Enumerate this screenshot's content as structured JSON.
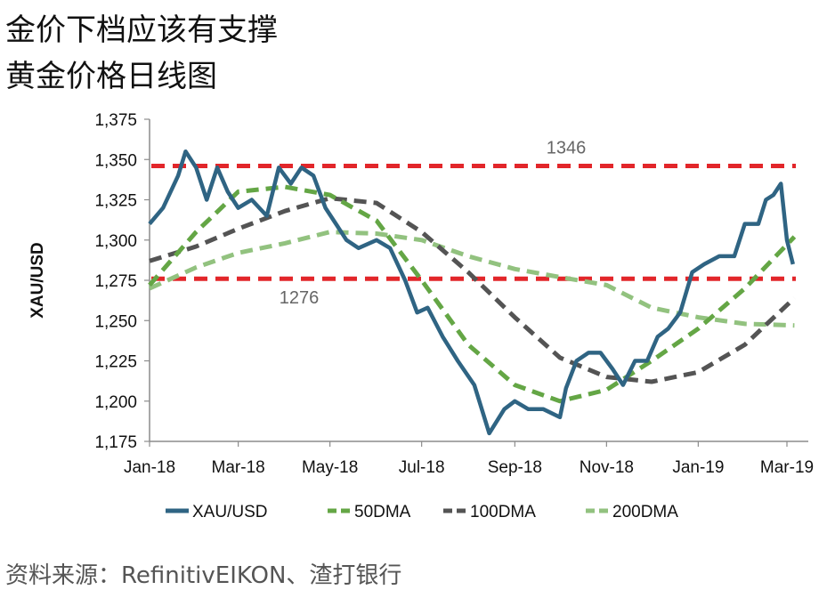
{
  "header": {
    "title": "金价下档应该有支撑",
    "subtitle": "黄金价格日线图"
  },
  "footer": {
    "source": "资料来源：RefinitivEIKON、渣打银行"
  },
  "colors": {
    "price": "#2f6483",
    "dma50": "#64a645",
    "dma100": "#545454",
    "dma200": "#92c27f",
    "level": "#e2262a",
    "axis": "#8c8c8c",
    "level_label": "#666666"
  },
  "chart_data": {
    "type": "line",
    "title": "",
    "xlabel": "",
    "ylabel": "XAU/USD",
    "ylim": [
      1175,
      1375
    ],
    "yticks": [
      "1,175",
      "1,200",
      "1,225",
      "1,250",
      "1,275",
      "1,300",
      "1,325",
      "1,350",
      "1,375"
    ],
    "ytick_values": [
      1175,
      1200,
      1225,
      1250,
      1275,
      1300,
      1325,
      1350,
      1375
    ],
    "xticks": [
      "Jan-18",
      "Mar-18",
      "May-18",
      "Jul-18",
      "Sep-18",
      "Nov-18",
      "Jan-19",
      "Mar-19"
    ],
    "xtick_dates": [
      "2018-01-01",
      "2018-03-01",
      "2018-05-01",
      "2018-07-01",
      "2018-09-01",
      "2018-11-01",
      "2019-01-01",
      "2019-03-01"
    ],
    "grid": false,
    "legend": "bottom",
    "levels": [
      {
        "value": 1346,
        "label": "1346"
      },
      {
        "value": 1276,
        "label": "1276"
      }
    ],
    "series": [
      {
        "name": "XAU/USD",
        "style": "solid",
        "x": [
          "2018-01-01",
          "2018-01-10",
          "2018-01-20",
          "2018-01-25",
          "2018-02-01",
          "2018-02-08",
          "2018-02-15",
          "2018-02-22",
          "2018-03-01",
          "2018-03-10",
          "2018-03-20",
          "2018-03-28",
          "2018-04-05",
          "2018-04-12",
          "2018-04-20",
          "2018-04-28",
          "2018-05-05",
          "2018-05-12",
          "2018-05-20",
          "2018-06-01",
          "2018-06-10",
          "2018-06-20",
          "2018-06-28",
          "2018-07-05",
          "2018-07-15",
          "2018-07-25",
          "2018-08-05",
          "2018-08-15",
          "2018-08-25",
          "2018-09-01",
          "2018-09-10",
          "2018-09-20",
          "2018-10-01",
          "2018-10-05",
          "2018-10-12",
          "2018-10-20",
          "2018-10-28",
          "2018-11-05",
          "2018-11-12",
          "2018-11-20",
          "2018-11-28",
          "2018-12-05",
          "2018-12-12",
          "2018-12-20",
          "2018-12-28",
          "2019-01-05",
          "2019-01-15",
          "2019-01-25",
          "2019-02-01",
          "2019-02-10",
          "2019-02-15",
          "2019-02-20",
          "2019-02-25",
          "2019-03-01",
          "2019-03-05"
        ],
        "y": [
          1310,
          1320,
          1340,
          1355,
          1345,
          1325,
          1345,
          1330,
          1320,
          1325,
          1315,
          1345,
          1335,
          1345,
          1340,
          1320,
          1310,
          1300,
          1295,
          1300,
          1295,
          1275,
          1255,
          1258,
          1240,
          1225,
          1210,
          1180,
          1195,
          1200,
          1195,
          1195,
          1190,
          1208,
          1225,
          1230,
          1230,
          1220,
          1210,
          1225,
          1225,
          1240,
          1245,
          1255,
          1280,
          1285,
          1290,
          1290,
          1310,
          1310,
          1325,
          1328,
          1335,
          1300,
          1285
        ]
      },
      {
        "name": "50DMA",
        "style": "dashed",
        "x": [
          "2018-01-01",
          "2018-02-01",
          "2018-03-01",
          "2018-04-01",
          "2018-05-01",
          "2018-06-01",
          "2018-07-01",
          "2018-08-01",
          "2018-09-01",
          "2018-10-01",
          "2018-11-01",
          "2018-12-01",
          "2019-01-01",
          "2019-02-01",
          "2019-03-06"
        ],
        "y": [
          1272,
          1305,
          1330,
          1333,
          1328,
          1312,
          1275,
          1235,
          1210,
          1200,
          1207,
          1225,
          1245,
          1270,
          1302
        ]
      },
      {
        "name": "100DMA",
        "style": "dashed",
        "x": [
          "2018-01-01",
          "2018-02-01",
          "2018-03-01",
          "2018-04-01",
          "2018-05-01",
          "2018-06-01",
          "2018-07-01",
          "2018-08-01",
          "2018-09-01",
          "2018-10-01",
          "2018-11-01",
          "2018-12-01",
          "2019-01-01",
          "2019-02-01",
          "2019-03-06"
        ],
        "y": [
          1287,
          1296,
          1307,
          1318,
          1326,
          1323,
          1305,
          1280,
          1252,
          1227,
          1215,
          1212,
          1218,
          1235,
          1264
        ]
      },
      {
        "name": "200DMA",
        "style": "dashed",
        "x": [
          "2018-01-01",
          "2018-02-01",
          "2018-03-01",
          "2018-04-01",
          "2018-05-01",
          "2018-06-01",
          "2018-07-01",
          "2018-08-01",
          "2018-09-01",
          "2018-10-01",
          "2018-11-01",
          "2018-12-01",
          "2019-01-01",
          "2019-02-01",
          "2019-03-06"
        ],
        "y": [
          1270,
          1283,
          1292,
          1298,
          1305,
          1304,
          1300,
          1290,
          1282,
          1277,
          1272,
          1258,
          1252,
          1248,
          1247
        ]
      }
    ]
  }
}
